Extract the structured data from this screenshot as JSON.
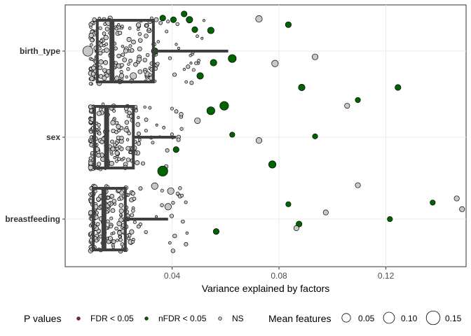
{
  "chart_data": {
    "type": "scatter",
    "subtype": "jitter points with boxplots, horizontal",
    "xlabel": "Variance explained by factors",
    "ylabel": "",
    "xlim": [
      0.0,
      0.15
    ],
    "xticks": [
      0.04,
      0.08,
      0.12
    ],
    "xtick_labels": [
      "0.04",
      "0.08",
      "0.12"
    ],
    "grid": true,
    "categories": [
      "birth_type",
      "sex",
      "breastfeeding"
    ],
    "colors": {
      "FDR < 0.05": "#b2182b",
      "nFDR < 0.05": "#006400",
      "NS": "#c8c8c8",
      "box": "#404040"
    },
    "boxplots": [
      {
        "category": "birth_type",
        "lower_whisker": 0.011,
        "q1": 0.012,
        "median": 0.0175,
        "q3": 0.033,
        "upper_whisker": 0.061
      },
      {
        "category": "sex",
        "lower_whisker": 0.01,
        "q1": 0.011,
        "median": 0.0155,
        "q3": 0.0255,
        "upper_whisker": 0.0415
      },
      {
        "category": "breastfeeding",
        "lower_whisker": 0.01,
        "q1": 0.0105,
        "median": 0.0145,
        "q3": 0.0225,
        "upper_whisker": 0.0385
      }
    ],
    "points": [
      {
        "category": "birth_type",
        "x": 0.0085,
        "offset": 0.0,
        "size": 0.1,
        "group": "NS"
      },
      {
        "category": "birth_type",
        "x": 0.0165,
        "offset": -0.35,
        "size": 0.06,
        "group": "NS"
      },
      {
        "category": "birth_type",
        "x": 0.0255,
        "offset": 0.3,
        "size": 0.05,
        "group": "NS"
      },
      {
        "category": "birth_type",
        "x": 0.0335,
        "offset": 0.0,
        "size": 0.05,
        "group": "nFDR < 0.05"
      },
      {
        "category": "birth_type",
        "x": 0.0365,
        "offset": -0.4,
        "size": 0.04,
        "group": "nFDR < 0.05"
      },
      {
        "category": "birth_type",
        "x": 0.0405,
        "offset": -0.38,
        "size": 0.04,
        "group": "nFDR < 0.05"
      },
      {
        "category": "birth_type",
        "x": 0.0445,
        "offset": -0.45,
        "size": 0.04,
        "group": "nFDR < 0.05"
      },
      {
        "category": "birth_type",
        "x": 0.0465,
        "offset": -0.38,
        "size": 0.05,
        "group": "nFDR < 0.05"
      },
      {
        "category": "birth_type",
        "x": 0.0485,
        "offset": -0.26,
        "size": 0.04,
        "group": "nFDR < 0.05"
      },
      {
        "category": "birth_type",
        "x": 0.0505,
        "offset": 0.3,
        "size": 0.05,
        "group": "nFDR < 0.05"
      },
      {
        "category": "birth_type",
        "x": 0.0545,
        "offset": -0.25,
        "size": 0.05,
        "group": "nFDR < 0.05"
      },
      {
        "category": "birth_type",
        "x": 0.0555,
        "offset": 0.14,
        "size": 0.05,
        "group": "nFDR < 0.05"
      },
      {
        "category": "birth_type",
        "x": 0.0625,
        "offset": 0.09,
        "size": 0.07,
        "group": "nFDR < 0.05"
      },
      {
        "category": "birth_type",
        "x": 0.0725,
        "offset": -0.39,
        "size": 0.05,
        "group": "NS"
      },
      {
        "category": "birth_type",
        "x": 0.0785,
        "offset": 0.15,
        "size": 0.05,
        "group": "NS"
      },
      {
        "category": "birth_type",
        "x": 0.0835,
        "offset": -0.32,
        "size": 0.04,
        "group": "nFDR < 0.05"
      },
      {
        "category": "birth_type",
        "x": 0.0935,
        "offset": 0.07,
        "size": 0.04,
        "group": "NS"
      },
      {
        "category": "birth_type",
        "x": 0.0885,
        "offset": 0.44,
        "size": 0.05,
        "group": "nFDR < 0.05"
      },
      {
        "category": "birth_type",
        "x": 0.1245,
        "offset": 0.44,
        "size": 0.04,
        "group": "nFDR < 0.05"
      },
      {
        "category": "sex",
        "x": 0.0545,
        "offset": -0.32,
        "size": 0.07,
        "group": "nFDR < 0.05"
      },
      {
        "category": "sex",
        "x": 0.0595,
        "offset": -0.38,
        "size": 0.08,
        "group": "nFDR < 0.05"
      },
      {
        "category": "sex",
        "x": 0.0495,
        "offset": -0.2,
        "size": 0.04,
        "group": "NS"
      },
      {
        "category": "sex",
        "x": 0.0415,
        "offset": 0.15,
        "size": 0.04,
        "group": "nFDR < 0.05"
      },
      {
        "category": "sex",
        "x": 0.0365,
        "offset": 0.41,
        "size": 0.1,
        "group": "nFDR < 0.05"
      },
      {
        "category": "sex",
        "x": 0.0775,
        "offset": 0.33,
        "size": 0.06,
        "group": "nFDR < 0.05"
      },
      {
        "category": "sex",
        "x": 0.0625,
        "offset": -0.03,
        "size": 0.03,
        "group": "nFDR < 0.05"
      },
      {
        "category": "sex",
        "x": 0.0725,
        "offset": 0.04,
        "size": 0.04,
        "group": "NS"
      },
      {
        "category": "sex",
        "x": 0.0935,
        "offset": -0.01,
        "size": 0.03,
        "group": "nFDR < 0.05"
      },
      {
        "category": "sex",
        "x": 0.1055,
        "offset": -0.38,
        "size": 0.03,
        "group": "NS"
      },
      {
        "category": "sex",
        "x": 0.1095,
        "offset": -0.45,
        "size": 0.03,
        "group": "nFDR < 0.05"
      },
      {
        "category": "breastfeeding",
        "x": 0.0335,
        "offset": -0.4,
        "size": 0.05,
        "group": "NS"
      },
      {
        "category": "breastfeeding",
        "x": 0.0395,
        "offset": -0.34,
        "size": 0.05,
        "group": "NS"
      },
      {
        "category": "breastfeeding",
        "x": 0.0385,
        "offset": -0.15,
        "size": 0.05,
        "group": "NS"
      },
      {
        "category": "breastfeeding",
        "x": 0.0565,
        "offset": 0.15,
        "size": 0.04,
        "group": "nFDR < 0.05"
      },
      {
        "category": "breastfeeding",
        "x": 0.0835,
        "offset": -0.18,
        "size": 0.03,
        "group": "nFDR < 0.05"
      },
      {
        "category": "breastfeeding",
        "x": 0.0875,
        "offset": 0.06,
        "size": 0.04,
        "group": "nFDR < 0.05"
      },
      {
        "category": "breastfeeding",
        "x": 0.0865,
        "offset": 0.11,
        "size": 0.03,
        "group": "NS"
      },
      {
        "category": "breastfeeding",
        "x": 0.0975,
        "offset": -0.08,
        "size": 0.03,
        "group": "NS"
      },
      {
        "category": "breastfeeding",
        "x": 0.1095,
        "offset": -0.41,
        "size": 0.03,
        "group": "NS"
      },
      {
        "category": "breastfeeding",
        "x": 0.1215,
        "offset": 0.0,
        "size": 0.03,
        "group": "nFDR < 0.05"
      },
      {
        "category": "breastfeeding",
        "x": 0.1375,
        "offset": -0.2,
        "size": 0.03,
        "group": "nFDR < 0.05"
      },
      {
        "category": "breastfeeding",
        "x": 0.1465,
        "offset": -0.25,
        "size": 0.03,
        "group": "NS"
      },
      {
        "category": "breastfeeding",
        "x": 0.1485,
        "offset": -0.12,
        "size": 0.03,
        "group": "NS"
      }
    ],
    "cluster_points": [
      {
        "category": "birth_type",
        "count": 170,
        "xmin": 0.0095,
        "xmax": 0.036,
        "extra": 22,
        "extra_xmax": 0.052
      },
      {
        "category": "sex",
        "count": 170,
        "xmin": 0.0095,
        "xmax": 0.028,
        "extra": 22,
        "extra_xmax": 0.046
      },
      {
        "category": "breastfeeding",
        "count": 170,
        "xmin": 0.0095,
        "xmax": 0.026,
        "extra": 22,
        "extra_xmax": 0.046
      }
    ],
    "legend": {
      "position": "bottom",
      "p_title": "P values",
      "p_items": [
        "FDR < 0.05",
        "nFDR < 0.05",
        "NS"
      ],
      "size_title": "Mean features",
      "size_items": [
        "0.05",
        "0.10",
        "0.15"
      ],
      "size_values": [
        0.05,
        0.1,
        0.15
      ]
    }
  }
}
